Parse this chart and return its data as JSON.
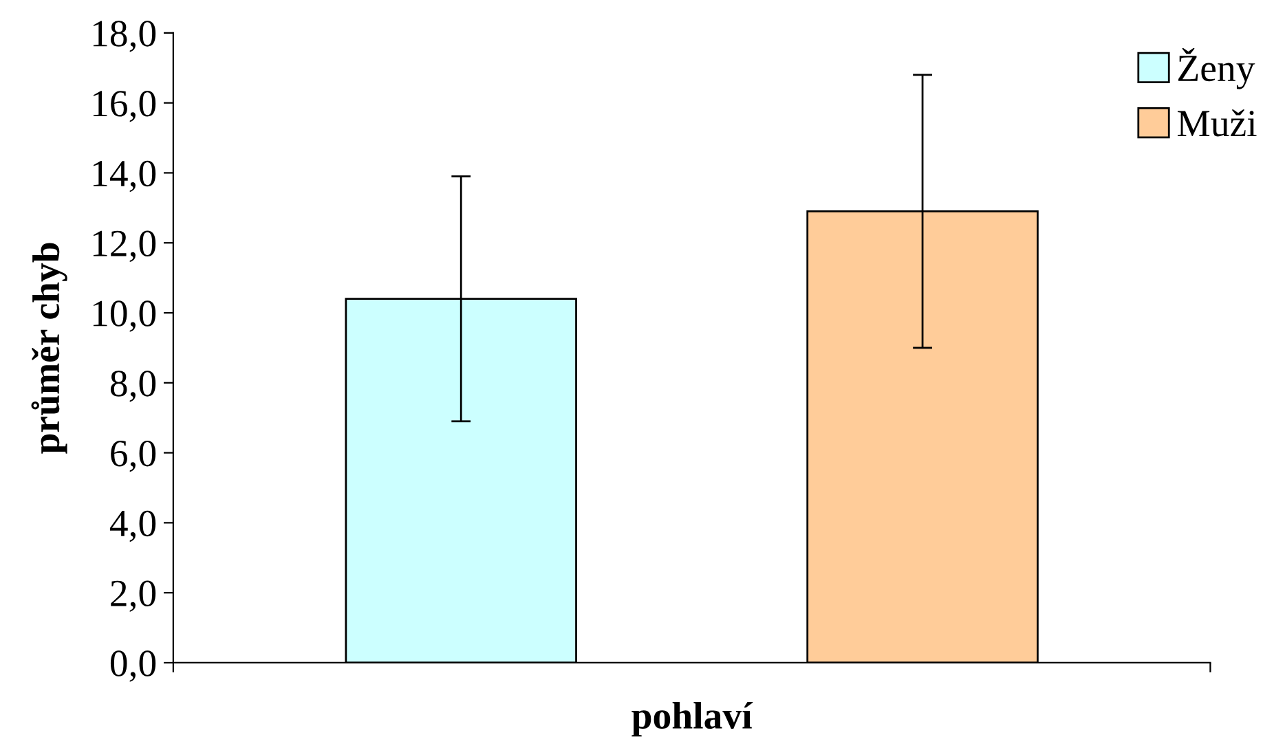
{
  "chart_data": {
    "type": "bar",
    "ylabel": "průměr chyb",
    "xlabel": "pohlaví",
    "categories": [
      null
    ],
    "series": [
      {
        "name": "Ženy",
        "color": "#ccffff",
        "values": [
          10.4
        ],
        "errors": [
          3.5
        ]
      },
      {
        "name": "Muži",
        "color": "#ffcc99",
        "values": [
          12.9
        ],
        "errors": [
          3.9
        ]
      }
    ],
    "ylim": [
      0,
      18
    ],
    "yticks": [
      {
        "value": 0,
        "label": "0,0"
      },
      {
        "value": 2,
        "label": "2,0"
      },
      {
        "value": 4,
        "label": "4,0"
      },
      {
        "value": 6,
        "label": "6,0"
      },
      {
        "value": 8,
        "label": "8,0"
      },
      {
        "value": 10,
        "label": "10,0"
      },
      {
        "value": 12,
        "label": "12,0"
      },
      {
        "value": 14,
        "label": "14,0"
      },
      {
        "value": 16,
        "label": "16,0"
      },
      {
        "value": 18,
        "label": "18,0"
      }
    ],
    "grid": false,
    "legend": "top right"
  }
}
